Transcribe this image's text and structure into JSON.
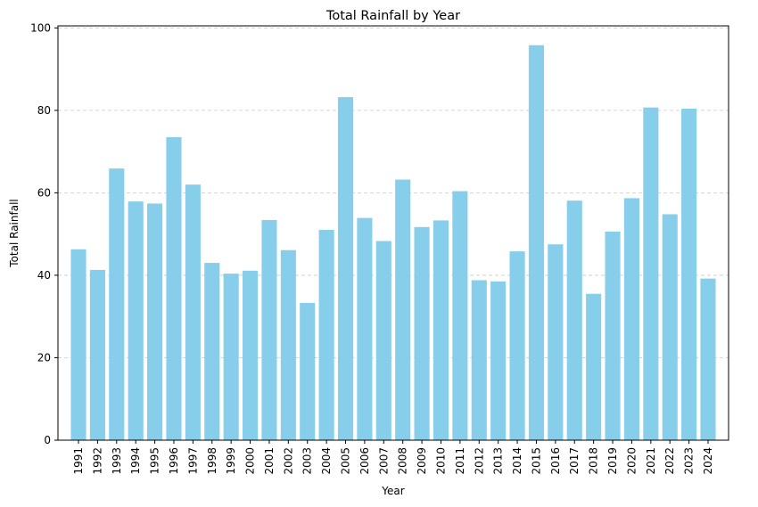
{
  "chart_data": {
    "type": "bar",
    "title": "Total Rainfall by Year",
    "xlabel": "Year",
    "ylabel": "Total Rainfall",
    "categories": [
      "1991",
      "1992",
      "1993",
      "1994",
      "1995",
      "1996",
      "1997",
      "1998",
      "1999",
      "2000",
      "2001",
      "2002",
      "2003",
      "2004",
      "2005",
      "2006",
      "2007",
      "2008",
      "2009",
      "2010",
      "2011",
      "2012",
      "2013",
      "2014",
      "2015",
      "2016",
      "2017",
      "2018",
      "2019",
      "2020",
      "2021",
      "2022",
      "2023",
      "2024"
    ],
    "values": [
      46.3,
      41.3,
      65.9,
      57.9,
      57.4,
      73.5,
      62.0,
      43.0,
      40.4,
      41.1,
      53.4,
      46.1,
      33.3,
      51.0,
      83.2,
      53.9,
      48.3,
      63.2,
      51.7,
      53.3,
      60.4,
      38.8,
      38.5,
      45.8,
      95.8,
      47.5,
      58.1,
      35.5,
      50.6,
      58.7,
      80.7,
      54.8,
      80.4,
      39.2
    ],
    "ylim": [
      0,
      100.5
    ],
    "yticks": [
      0,
      20,
      40,
      60,
      80,
      100
    ],
    "grid": "y-dashed",
    "bar_color": "#87ceeb",
    "grid_color": "#c8c8c8"
  }
}
